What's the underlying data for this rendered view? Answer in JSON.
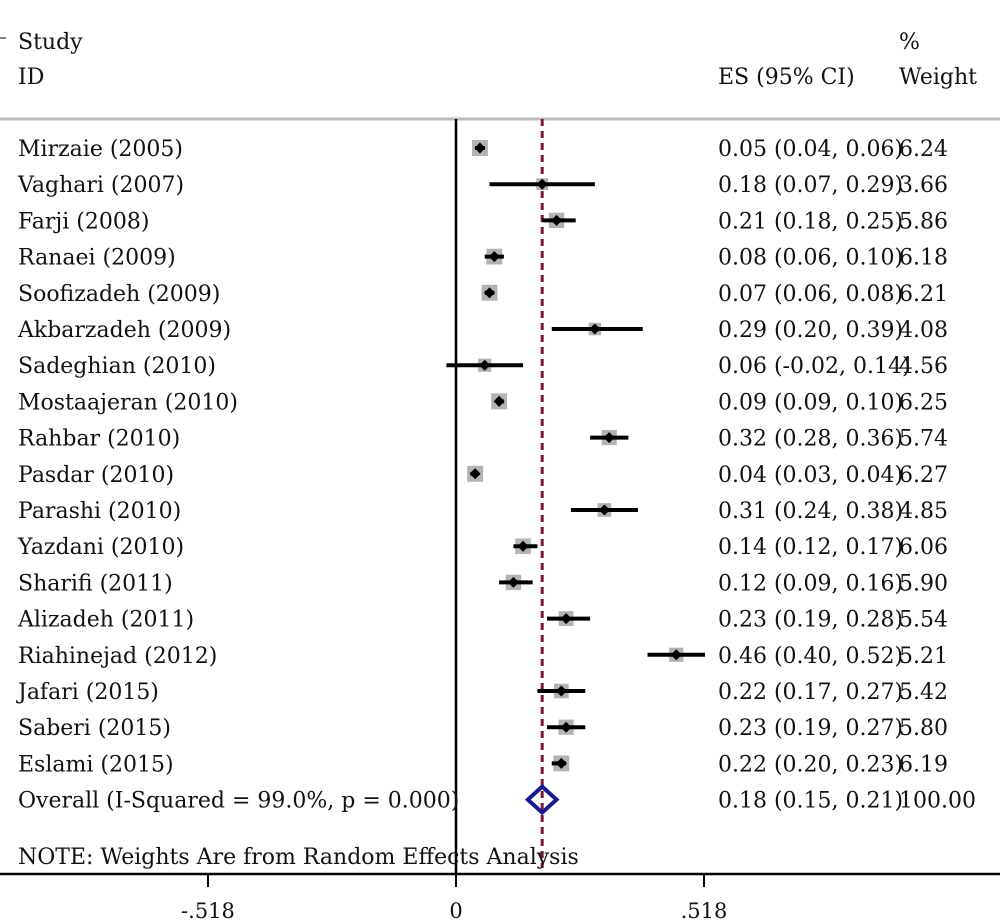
{
  "chart_data": {
    "type": "forest",
    "headers": {
      "study_line1": "Study",
      "study_line2": "ID",
      "es": "ES (95% CI)",
      "weight_line1": "%",
      "weight_line2": "Weight"
    },
    "studies": [
      {
        "label": "Mirzaie (2005)",
        "es": 0.05,
        "lo": 0.04,
        "hi": 0.06,
        "ci_text": "0.05 (0.04, 0.06)",
        "weight": "6.24"
      },
      {
        "label": "Vaghari (2007)",
        "es": 0.18,
        "lo": 0.07,
        "hi": 0.29,
        "ci_text": "0.18 (0.07, 0.29)",
        "weight": "3.66"
      },
      {
        "label": "Farji (2008)",
        "es": 0.21,
        "lo": 0.18,
        "hi": 0.25,
        "ci_text": "0.21 (0.18, 0.25)",
        "weight": "5.86"
      },
      {
        "label": "Ranaei (2009)",
        "es": 0.08,
        "lo": 0.06,
        "hi": 0.1,
        "ci_text": "0.08 (0.06, 0.10)",
        "weight": "6.18"
      },
      {
        "label": "Soofizadeh (2009)",
        "es": 0.07,
        "lo": 0.06,
        "hi": 0.08,
        "ci_text": "0.07 (0.06, 0.08)",
        "weight": "6.21"
      },
      {
        "label": "Akbarzadeh (2009)",
        "es": 0.29,
        "lo": 0.2,
        "hi": 0.39,
        "ci_text": "0.29 (0.20, 0.39)",
        "weight": "4.08"
      },
      {
        "label": "Sadeghian (2010)",
        "es": 0.06,
        "lo": -0.02,
        "hi": 0.14,
        "ci_text": "0.06 (-0.02, 0.14)",
        "weight": "4.56"
      },
      {
        "label": "Mostaajeran (2010)",
        "es": 0.09,
        "lo": 0.09,
        "hi": 0.1,
        "ci_text": "0.09 (0.09, 0.10)",
        "weight": "6.25"
      },
      {
        "label": "Rahbar (2010)",
        "es": 0.32,
        "lo": 0.28,
        "hi": 0.36,
        "ci_text": "0.32 (0.28, 0.36)",
        "weight": "5.74"
      },
      {
        "label": "Pasdar (2010)",
        "es": 0.04,
        "lo": 0.03,
        "hi": 0.04,
        "ci_text": "0.04 (0.03, 0.04)",
        "weight": "6.27"
      },
      {
        "label": "Parashi (2010)",
        "es": 0.31,
        "lo": 0.24,
        "hi": 0.38,
        "ci_text": "0.31 (0.24, 0.38)",
        "weight": "4.85"
      },
      {
        "label": "Yazdani (2010)",
        "es": 0.14,
        "lo": 0.12,
        "hi": 0.17,
        "ci_text": "0.14 (0.12, 0.17)",
        "weight": "6.06"
      },
      {
        "label": "Sharifi (2011)",
        "es": 0.12,
        "lo": 0.09,
        "hi": 0.16,
        "ci_text": "0.12 (0.09, 0.16)",
        "weight": "5.90"
      },
      {
        "label": "Alizadeh (2011)",
        "es": 0.23,
        "lo": 0.19,
        "hi": 0.28,
        "ci_text": "0.23 (0.19, 0.28)",
        "weight": "5.54"
      },
      {
        "label": "Riahinejad (2012)",
        "es": 0.46,
        "lo": 0.4,
        "hi": 0.52,
        "ci_text": "0.46 (0.40, 0.52)",
        "weight": "5.21"
      },
      {
        "label": "Jafari (2015)",
        "es": 0.22,
        "lo": 0.17,
        "hi": 0.27,
        "ci_text": "0.22 (0.17, 0.27)",
        "weight": "5.42"
      },
      {
        "label": "Saberi (2015)",
        "es": 0.23,
        "lo": 0.19,
        "hi": 0.27,
        "ci_text": "0.23 (0.19, 0.27)",
        "weight": "5.80"
      },
      {
        "label": "Eslami (2015)",
        "es": 0.22,
        "lo": 0.2,
        "hi": 0.23,
        "ci_text": "0.22 (0.20, 0.23)",
        "weight": "6.19"
      }
    ],
    "overall": {
      "label": "Overall  (I-Squared = 99.0%, p = 0.000)",
      "es": 0.18,
      "lo": 0.15,
      "hi": 0.21,
      "ci_text": "0.18 (0.15, 0.21)",
      "weight": "100.00"
    },
    "note": "NOTE: Weights Are from Random Effects Analysis",
    "x_ticks": [
      {
        "value": -0.518,
        "label": "-.518"
      },
      {
        "value": 0,
        "label": "0"
      },
      {
        "value": 0.518,
        "label": ".518"
      }
    ],
    "null_line": 0,
    "colors": {
      "marker": "#000000",
      "weight_box": "#b3b3b3",
      "overall_diamond": "#1a1a8c",
      "overall_line": "#7a1a3a",
      "header_rule": "#bbbbbb"
    }
  }
}
